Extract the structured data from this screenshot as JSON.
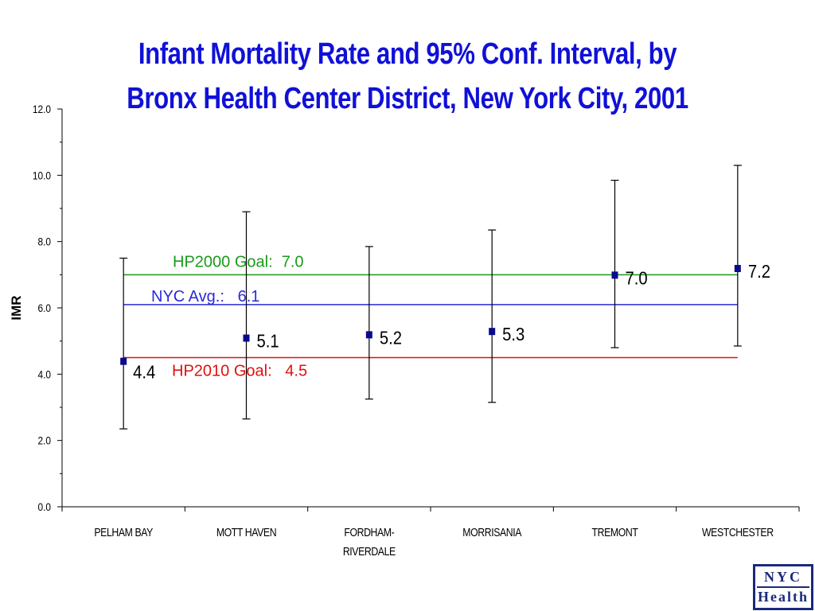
{
  "title": {
    "line1": "Infant Mortality Rate and 95% Conf. Interval, by",
    "line2": "Bronx Health Center District, New York City, 2001"
  },
  "logo": {
    "top": "NYC",
    "bottom": "Health"
  },
  "chart_data": {
    "type": "scatter",
    "title": "Infant Mortality Rate and 95% Conf. Interval, by Bronx Health Center District, New York City, 2001",
    "ylabel": "IMR",
    "xlabel": "",
    "ylim": [
      0,
      12
    ],
    "yticks": [
      "0.0",
      "2.0",
      "4.0",
      "6.0",
      "8.0",
      "10.0",
      "12.0"
    ],
    "grid": false,
    "categories": [
      [
        "PELHAM BAY"
      ],
      [
        "MOTT HAVEN"
      ],
      [
        "FORDHAM-",
        "RIVERDALE"
      ],
      [
        "MORRISANIA"
      ],
      [
        "TREMONT"
      ],
      [
        "WESTCHESTER"
      ]
    ],
    "series": [
      {
        "values": [
          4.4,
          5.1,
          5.2,
          5.3,
          7.0,
          7.2
        ],
        "labels": [
          "4.4",
          "5.1",
          "5.2",
          "5.3",
          "7.0",
          "7.2"
        ],
        "lower": [
          2.35,
          2.65,
          3.25,
          3.15,
          4.8,
          4.85
        ],
        "upper": [
          7.5,
          8.9,
          7.85,
          8.35,
          9.85,
          10.3
        ],
        "color": "#0a0a8c"
      }
    ],
    "reference_lines": [
      {
        "label": "HP2000 Goal:  7.0",
        "value": 7.0,
        "color": "#1a9a1a"
      },
      {
        "label": "NYC Avg.:   6.1",
        "value": 6.1,
        "color": "#2a2ad8"
      },
      {
        "label": "HP2010 Goal:   4.5",
        "value": 4.5,
        "color": "#e01010"
      }
    ]
  }
}
